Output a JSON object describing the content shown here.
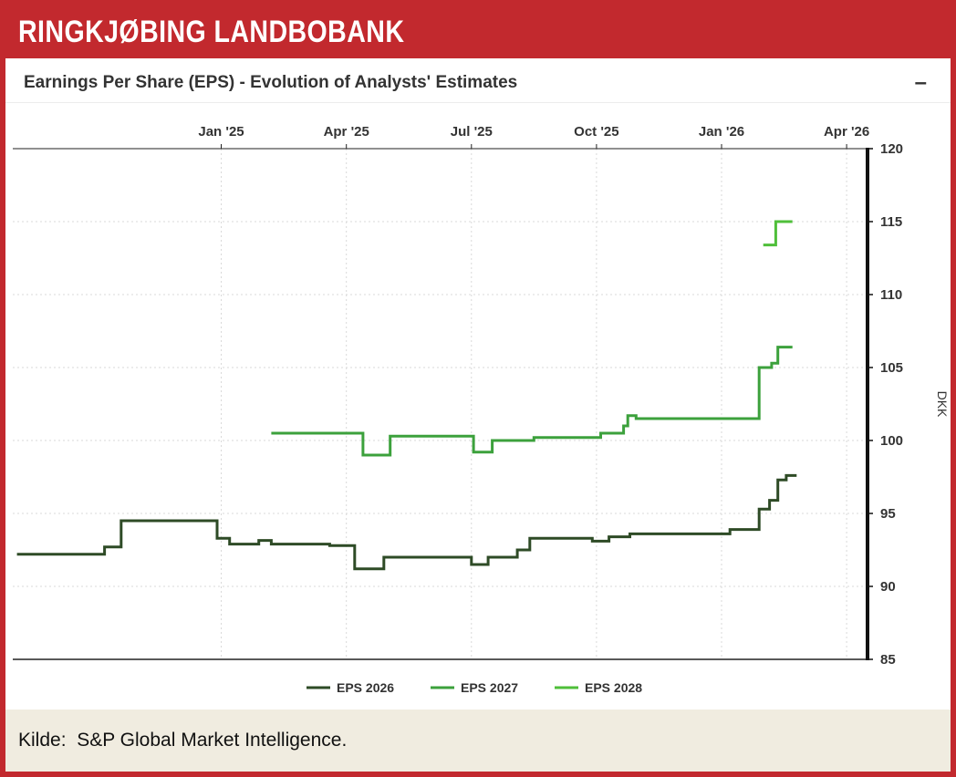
{
  "banner": {
    "title": "RINGKJØBING LANDBOBANK"
  },
  "chart": {
    "title": "Earnings Per Share (EPS) - Evolution of Analysts' Estimates",
    "collapse_label": "–",
    "y_axis_label": "DKK"
  },
  "footer": {
    "source": "Kilde:  S&P Global Market Intelligence."
  },
  "colors": {
    "banner_red": "#c2292e",
    "grid": "#d9d9d9",
    "axis": "#111111",
    "text": "#333333",
    "source_bg": "#f0ece0",
    "eps_2026": "#2e4b26",
    "eps_2027": "#3ca13c",
    "eps_2028": "#4fbf3a"
  },
  "chart_data": {
    "type": "line",
    "step": "after",
    "title": "Earnings Per Share (EPS) - Evolution of Analysts' Estimates",
    "xlabel": "",
    "ylabel": "DKK",
    "x_unit": "months relative to Jan 2025",
    "x_range": [
      -5,
      15.5
    ],
    "y_range": [
      85,
      120
    ],
    "x_ticks": [
      {
        "pos": 0,
        "label": "Jan '25"
      },
      {
        "pos": 3,
        "label": "Apr '25"
      },
      {
        "pos": 6,
        "label": "Jul '25"
      },
      {
        "pos": 9,
        "label": "Oct '25"
      },
      {
        "pos": 12,
        "label": "Jan '26"
      },
      {
        "pos": 15,
        "label": "Apr '26"
      }
    ],
    "y_ticks": [
      85,
      90,
      95,
      100,
      105,
      110,
      115,
      120
    ],
    "grid": "dotted",
    "legend_position": "bottom",
    "series": [
      {
        "name": "EPS 2026",
        "color": "#2e4b26",
        "points": [
          [
            -4.9,
            92.2
          ],
          [
            -2.8,
            92.7
          ],
          [
            -2.4,
            94.5
          ],
          [
            -0.1,
            93.3
          ],
          [
            0.2,
            92.9
          ],
          [
            0.9,
            93.15
          ],
          [
            1.2,
            92.9
          ],
          [
            2.6,
            92.8
          ],
          [
            3.2,
            91.2
          ],
          [
            3.9,
            92.0
          ],
          [
            6.0,
            91.5
          ],
          [
            6.4,
            92.0
          ],
          [
            7.1,
            92.5
          ],
          [
            7.4,
            93.3
          ],
          [
            8.9,
            93.1
          ],
          [
            9.3,
            93.4
          ],
          [
            9.8,
            93.6
          ],
          [
            12.2,
            93.9
          ],
          [
            12.9,
            95.3
          ],
          [
            13.15,
            95.9
          ],
          [
            13.35,
            97.3
          ],
          [
            13.55,
            97.6
          ],
          [
            13.8,
            97.6
          ]
        ]
      },
      {
        "name": "EPS 2027",
        "color": "#3ca13c",
        "points": [
          [
            1.2,
            100.5
          ],
          [
            3.4,
            99.0
          ],
          [
            4.05,
            100.3
          ],
          [
            6.05,
            99.2
          ],
          [
            6.5,
            100.0
          ],
          [
            7.5,
            100.2
          ],
          [
            9.1,
            100.5
          ],
          [
            9.65,
            101.0
          ],
          [
            9.75,
            101.7
          ],
          [
            9.95,
            101.5
          ],
          [
            12.9,
            105.0
          ],
          [
            13.2,
            105.3
          ],
          [
            13.35,
            106.4
          ],
          [
            13.7,
            106.4
          ]
        ]
      },
      {
        "name": "EPS 2028",
        "color": "#4fbf3a",
        "points": [
          [
            13.0,
            113.4
          ],
          [
            13.3,
            115.0
          ],
          [
            13.7,
            115.0
          ]
        ]
      }
    ]
  }
}
